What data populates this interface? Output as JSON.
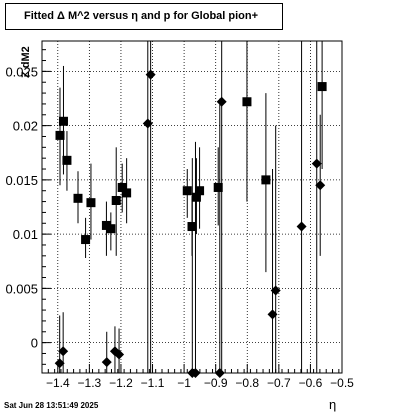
{
  "title": "Fitted Δ M^2 versus η and p for Global pion+",
  "timestamp": "Sat Jun 28 13:51:49 2025",
  "chart_data": {
    "type": "scatter",
    "title": "Fitted Δ M^2 versus η and p for Global pion+",
    "xlabel": "η",
    "ylabel": "Z dM2",
    "xlim": [
      -1.45,
      -0.5
    ],
    "ylim": [
      -0.0028,
      0.0278
    ],
    "grid": true,
    "x_ticks": [
      -1.4,
      -1.3,
      -1.2,
      -1.1,
      -1.0,
      -0.9,
      -0.8,
      -0.7,
      -0.6,
      -0.5
    ],
    "x_tick_labels": [
      "−1.4",
      "−1.3",
      "−1.2",
      "−1.1",
      "−1",
      "−0.9",
      "−0.8",
      "−0.7",
      "−0.6",
      "−0.5"
    ],
    "y_ticks": [
      0,
      0.005,
      0.01,
      0.015,
      0.02,
      0.025
    ],
    "y_tick_labels": [
      "0",
      "0.005",
      "0.01",
      "0.015",
      "0.02",
      "0.025"
    ],
    "series": [
      {
        "marker": "square",
        "points": [
          {
            "x": -1.393,
            "y": 0.0191,
            "lo": 0.0145,
            "hi": 0.0235
          },
          {
            "x": -1.382,
            "y": 0.0204,
            "lo": 0.0155,
            "hi": 0.0255
          },
          {
            "x": -1.371,
            "y": 0.0168,
            "lo": 0.014,
            "hi": 0.0195
          },
          {
            "x": -1.336,
            "y": 0.0133,
            "lo": 0.011,
            "hi": 0.0158
          },
          {
            "x": -1.312,
            "y": 0.0095,
            "lo": 0.0078,
            "hi": 0.0115
          },
          {
            "x": -1.295,
            "y": 0.0129,
            "lo": 0.0095,
            "hi": 0.0165
          },
          {
            "x": -1.246,
            "y": 0.0108,
            "lo": 0.008,
            "hi": 0.013
          },
          {
            "x": -1.232,
            "y": 0.0105,
            "lo": 0.0085,
            "hi": 0.012
          },
          {
            "x": -1.215,
            "y": 0.0131,
            "lo": 0.008,
            "hi": 0.018
          },
          {
            "x": -1.196,
            "y": 0.0143,
            "lo": 0.012,
            "hi": 0.0165
          },
          {
            "x": -1.182,
            "y": 0.0138,
            "lo": 0.011,
            "hi": 0.017
          },
          {
            "x": -0.99,
            "y": 0.014,
            "lo": 0.0115,
            "hi": 0.016
          },
          {
            "x": -0.975,
            "y": 0.0107,
            "lo": 0.008,
            "hi": 0.0135
          },
          {
            "x": -0.961,
            "y": 0.0134,
            "lo": 0.01,
            "hi": 0.017
          },
          {
            "x": -0.951,
            "y": 0.014,
            "lo": 0.0105,
            "hi": 0.018
          },
          {
            "x": -0.892,
            "y": 0.0143,
            "lo": 0.0108,
            "hi": 0.018
          },
          {
            "x": -0.801,
            "y": 0.0222,
            "lo": 0.013,
            "hi": 0.0278
          },
          {
            "x": -0.741,
            "y": 0.015,
            "lo": 0.0065,
            "hi": 0.023
          },
          {
            "x": -0.563,
            "y": 0.0236,
            "lo": 0.016,
            "hi": 0.0278
          }
        ]
      },
      {
        "marker": "diamond",
        "points": [
          {
            "x": -1.394,
            "y": -0.0019,
            "lo": -0.0028,
            "hi": 0.0025
          },
          {
            "x": -1.383,
            "y": -0.0008,
            "lo": -0.0028,
            "hi": 0.0028
          },
          {
            "x": -1.245,
            "y": -0.0018,
            "lo": -0.0028,
            "hi": 0.001
          },
          {
            "x": -1.219,
            "y": -0.0008,
            "lo": -0.0028,
            "hi": 0.0015
          },
          {
            "x": -1.206,
            "y": -0.0011,
            "lo": -0.0028,
            "hi": 0.0013
          },
          {
            "x": -1.115,
            "y": 0.0202,
            "lo": -0.0028,
            "hi": 0.0278
          },
          {
            "x": -1.106,
            "y": 0.0247,
            "lo": -0.0028,
            "hi": 0.0278
          },
          {
            "x": -0.974,
            "y": -0.0028,
            "lo": -0.0028,
            "hi": 0.017
          },
          {
            "x": -0.964,
            "y": -0.0028,
            "lo": -0.0028,
            "hi": 0.0185
          },
          {
            "x": -0.887,
            "y": -0.0028,
            "lo": -0.0028,
            "hi": 0.0225
          },
          {
            "x": -0.881,
            "y": 0.0222,
            "lo": -0.0028,
            "hi": 0.0278
          },
          {
            "x": -0.72,
            "y": 0.0026,
            "lo": -0.0028,
            "hi": 0.016
          },
          {
            "x": -0.71,
            "y": 0.0048,
            "lo": -0.0028,
            "hi": 0.02
          },
          {
            "x": -0.628,
            "y": 0.0107,
            "lo": -0.0028,
            "hi": 0.0278
          },
          {
            "x": -0.58,
            "y": 0.0165,
            "lo": -0.0028,
            "hi": 0.0278
          },
          {
            "x": -0.569,
            "y": 0.0145,
            "lo": 0.008,
            "hi": 0.021
          }
        ]
      }
    ]
  }
}
